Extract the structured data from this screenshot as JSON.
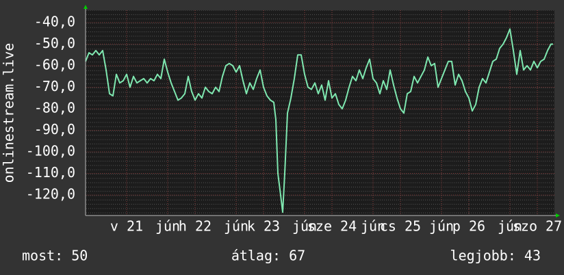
{
  "chart_data": {
    "type": "line",
    "y_label": "onlinestream.live",
    "x": [
      0,
      0.05,
      0.1,
      0.15,
      0.2,
      0.25,
      0.3,
      0.35,
      0.4,
      0.45,
      0.5,
      0.55,
      0.6,
      0.65,
      0.7,
      0.75,
      0.8,
      0.85,
      0.9,
      0.95,
      1.0,
      1.05,
      1.1,
      1.15,
      1.2,
      1.25,
      1.3,
      1.35,
      1.4,
      1.45,
      1.5,
      1.55,
      1.6,
      1.65,
      1.7,
      1.75,
      1.8,
      1.85,
      1.9,
      1.95,
      2.0,
      2.05,
      2.1,
      2.15,
      2.2,
      2.25,
      2.3,
      2.35,
      2.4,
      2.45,
      2.5,
      2.55,
      2.6,
      2.65,
      2.7,
      2.75,
      2.78,
      2.81,
      2.85,
      2.88,
      2.91,
      2.95,
      3.0,
      3.05,
      3.1,
      3.15,
      3.2,
      3.25,
      3.3,
      3.35,
      3.4,
      3.45,
      3.5,
      3.55,
      3.6,
      3.65,
      3.7,
      3.75,
      3.8,
      3.85,
      3.9,
      3.95,
      4.0,
      4.05,
      4.1,
      4.15,
      4.2,
      4.25,
      4.3,
      4.35,
      4.4,
      4.45,
      4.5,
      4.55,
      4.6,
      4.65,
      4.7,
      4.75,
      4.8,
      4.85,
      4.9,
      4.95,
      5.0,
      5.05,
      5.1,
      5.15,
      5.2,
      5.25,
      5.3,
      5.35,
      5.4,
      5.45,
      5.5,
      5.55,
      5.6,
      5.65,
      5.7,
      5.75,
      5.8,
      5.85,
      5.9,
      5.95,
      6.0,
      6.05,
      6.1,
      6.15,
      6.2,
      6.25,
      6.3,
      6.35,
      6.4,
      6.45,
      6.5,
      6.55,
      6.6,
      6.65,
      6.7,
      6.75,
      6.8,
      6.83
    ],
    "series": [
      {
        "name": "onlinestream.live",
        "color": "#7fe8b0",
        "values": [
          -58,
          -54,
          -55,
          -53,
          -55,
          -53,
          -62,
          -73,
          -74,
          -64,
          -68,
          -67,
          -64,
          -70,
          -65,
          -68,
          -67,
          -66,
          -68,
          -66,
          -67,
          -64,
          -66,
          -57,
          -63,
          -68,
          -72,
          -76,
          -75,
          -73,
          -65,
          -72,
          -76,
          -73,
          -75,
          -70,
          -72,
          -73,
          -70,
          -72,
          -65,
          -60,
          -59,
          -60,
          -63,
          -60,
          -67,
          -73,
          -68,
          -71,
          -66,
          -62,
          -70,
          -74,
          -76,
          -77,
          -85,
          -110,
          -120,
          -128,
          -110,
          -82,
          -75,
          -66,
          -55,
          -55,
          -64,
          -70,
          -71,
          -68,
          -73,
          -69,
          -76,
          -67,
          -75,
          -73,
          -78,
          -80,
          -76,
          -70,
          -65,
          -67,
          -62,
          -66,
          -61,
          -57,
          -66,
          -68,
          -73,
          -67,
          -71,
          -62,
          -69,
          -75,
          -80,
          -82,
          -73,
          -72,
          -65,
          -68,
          -65,
          -62,
          -56,
          -60,
          -59,
          -70,
          -66,
          -62,
          -58,
          -58,
          -69,
          -64,
          -67,
          -72,
          -75,
          -81,
          -78,
          -70,
          -66,
          -68,
          -63,
          -58,
          -57,
          -52,
          -50,
          -47,
          -43,
          -53,
          -64,
          -53,
          -62,
          -60,
          -62,
          -58,
          -61,
          -58,
          -57,
          -53,
          -50,
          -50
        ]
      }
    ],
    "xlim": [
      0,
      6.85
    ],
    "xticks": [
      {
        "value": 0.6,
        "label": "v 21"
      },
      {
        "value": 1.2,
        "label": "jún"
      },
      {
        "value": 1.6,
        "label": "h 22"
      },
      {
        "value": 2.2,
        "label": "jún"
      },
      {
        "value": 2.6,
        "label": "k 23"
      },
      {
        "value": 3.2,
        "label": "jún"
      },
      {
        "value": 3.6,
        "label": "sze 24"
      },
      {
        "value": 4.2,
        "label": "jún"
      },
      {
        "value": 4.6,
        "label": "cs 25"
      },
      {
        "value": 5.2,
        "label": "jún"
      },
      {
        "value": 5.6,
        "label": "p 26"
      },
      {
        "value": 6.2,
        "label": "jún"
      },
      {
        "value": 6.6,
        "label": "szo 27"
      }
    ],
    "ylim": [
      -129.5,
      -34.3
    ],
    "yticks": [
      {
        "value": -40,
        "label": "-40,0"
      },
      {
        "value": -50,
        "label": "-50,0"
      },
      {
        "value": -60,
        "label": "-60,0"
      },
      {
        "value": -70,
        "label": "-70,0"
      },
      {
        "value": -80,
        "label": "-80,0"
      },
      {
        "value": -90,
        "label": "-90,0"
      },
      {
        "value": -100,
        "label": "-100,0"
      },
      {
        "value": -110,
        "label": "-110,0"
      },
      {
        "value": -120,
        "label": "-120,0"
      }
    ],
    "grid": true,
    "footer": [
      "most: 50",
      "átlag: 67",
      "legjobb: 43"
    ]
  }
}
